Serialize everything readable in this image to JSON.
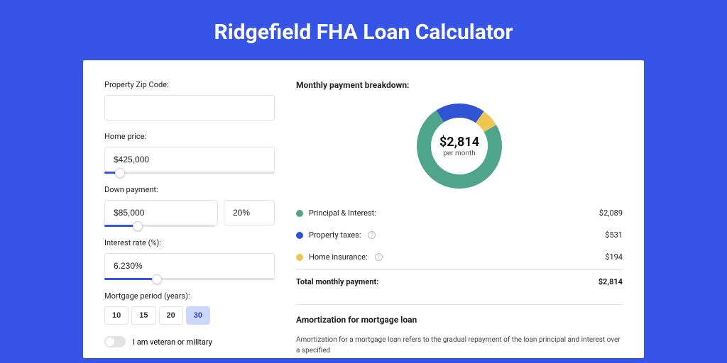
{
  "header": {
    "title": "Ridgefield FHA Loan Calculator"
  },
  "form": {
    "zip": {
      "label": "Property Zip Code:",
      "value": ""
    },
    "home_price": {
      "label": "Home price:",
      "value": "$425,000",
      "slider_pct": 9
    },
    "down_payment": {
      "label": "Down payment:",
      "amount": "$85,000",
      "pct": "20%",
      "slider_pct": 20
    },
    "interest": {
      "label": "Interest rate (%):",
      "value": "6.230%",
      "slider_pct": 31
    },
    "period": {
      "label": "Mortgage period (years):",
      "options": [
        "10",
        "15",
        "20",
        "30"
      ],
      "selected_index": 3
    },
    "veteran": {
      "label": "I am veteran or military",
      "checked": false
    }
  },
  "breakdown": {
    "title": "Monthly payment breakdown:",
    "center_value": "$2,814",
    "center_sub": "per month",
    "items": [
      {
        "label": "Principal & Interest:",
        "value": "$2,089",
        "color": "#4fa58c",
        "has_info": false
      },
      {
        "label": "Property taxes:",
        "value": "$531",
        "color": "#2f55d4",
        "has_info": true
      },
      {
        "label": "Home insurance:",
        "value": "$194",
        "color": "#f0c652",
        "has_info": true
      }
    ],
    "total_label": "Total monthly payment:",
    "total_value": "$2,814",
    "donut": {
      "slices": [
        {
          "color": "#4fa58c",
          "value": 2089
        },
        {
          "color": "#2f55d4",
          "value": 531
        },
        {
          "color": "#f0c652",
          "value": 194
        }
      ],
      "stroke_width": 20,
      "radius": 50,
      "start_angle_deg": -30
    }
  },
  "amortization": {
    "title": "Amortization for mortgage loan",
    "text": "Amortization for a mortgage loan refers to the gradual repayment of the loan principal and interest over a specified"
  },
  "styling": {
    "page_bg": "#3654e5",
    "card_bg": "#ffffff",
    "border": "#e3e3e3",
    "accent": "#3654e5",
    "period_active_bg": "#cdd7fb",
    "period_active_text": "#2a3fd0"
  }
}
